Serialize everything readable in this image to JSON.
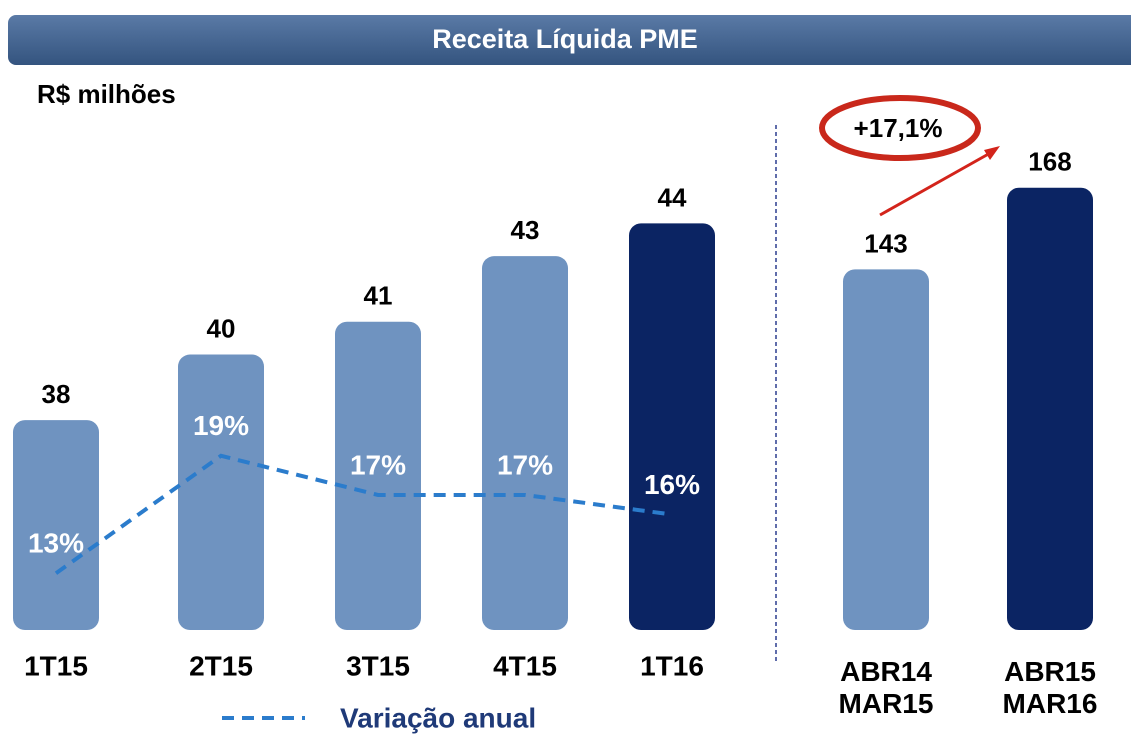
{
  "title": "Receita Líquida PME",
  "chart_data": [
    {
      "type": "bar",
      "subtitle": "R$ milhões",
      "categories": [
        "1T15",
        "2T15",
        "3T15",
        "4T15",
        "1T16"
      ],
      "values": [
        38,
        40,
        41,
        43,
        44
      ],
      "colors": [
        "#6f93c0",
        "#6f93c0",
        "#6f93c0",
        "#6f93c0",
        "#0b2463"
      ],
      "ylim": [
        31.6,
        47
      ],
      "series": [
        {
          "name": "Variação anual",
          "type": "line",
          "color": "#2b7ccc",
          "axis": "y2",
          "values": [
            13,
            19,
            17,
            17,
            16
          ],
          "value_labels": [
            "13%",
            "19%",
            "17%",
            "17%",
            "16%"
          ]
        }
      ],
      "y2lim": [
        10.1,
        35.9
      ]
    },
    {
      "type": "bar",
      "categories": [
        "ABR14\nMAR15",
        "ABR15\nMAR16"
      ],
      "values": [
        143,
        168
      ],
      "colors": [
        "#6f93c0",
        "#0b2463"
      ],
      "ylim": [
        32.6,
        187.2
      ],
      "annotation": "+17,1%"
    }
  ]
}
